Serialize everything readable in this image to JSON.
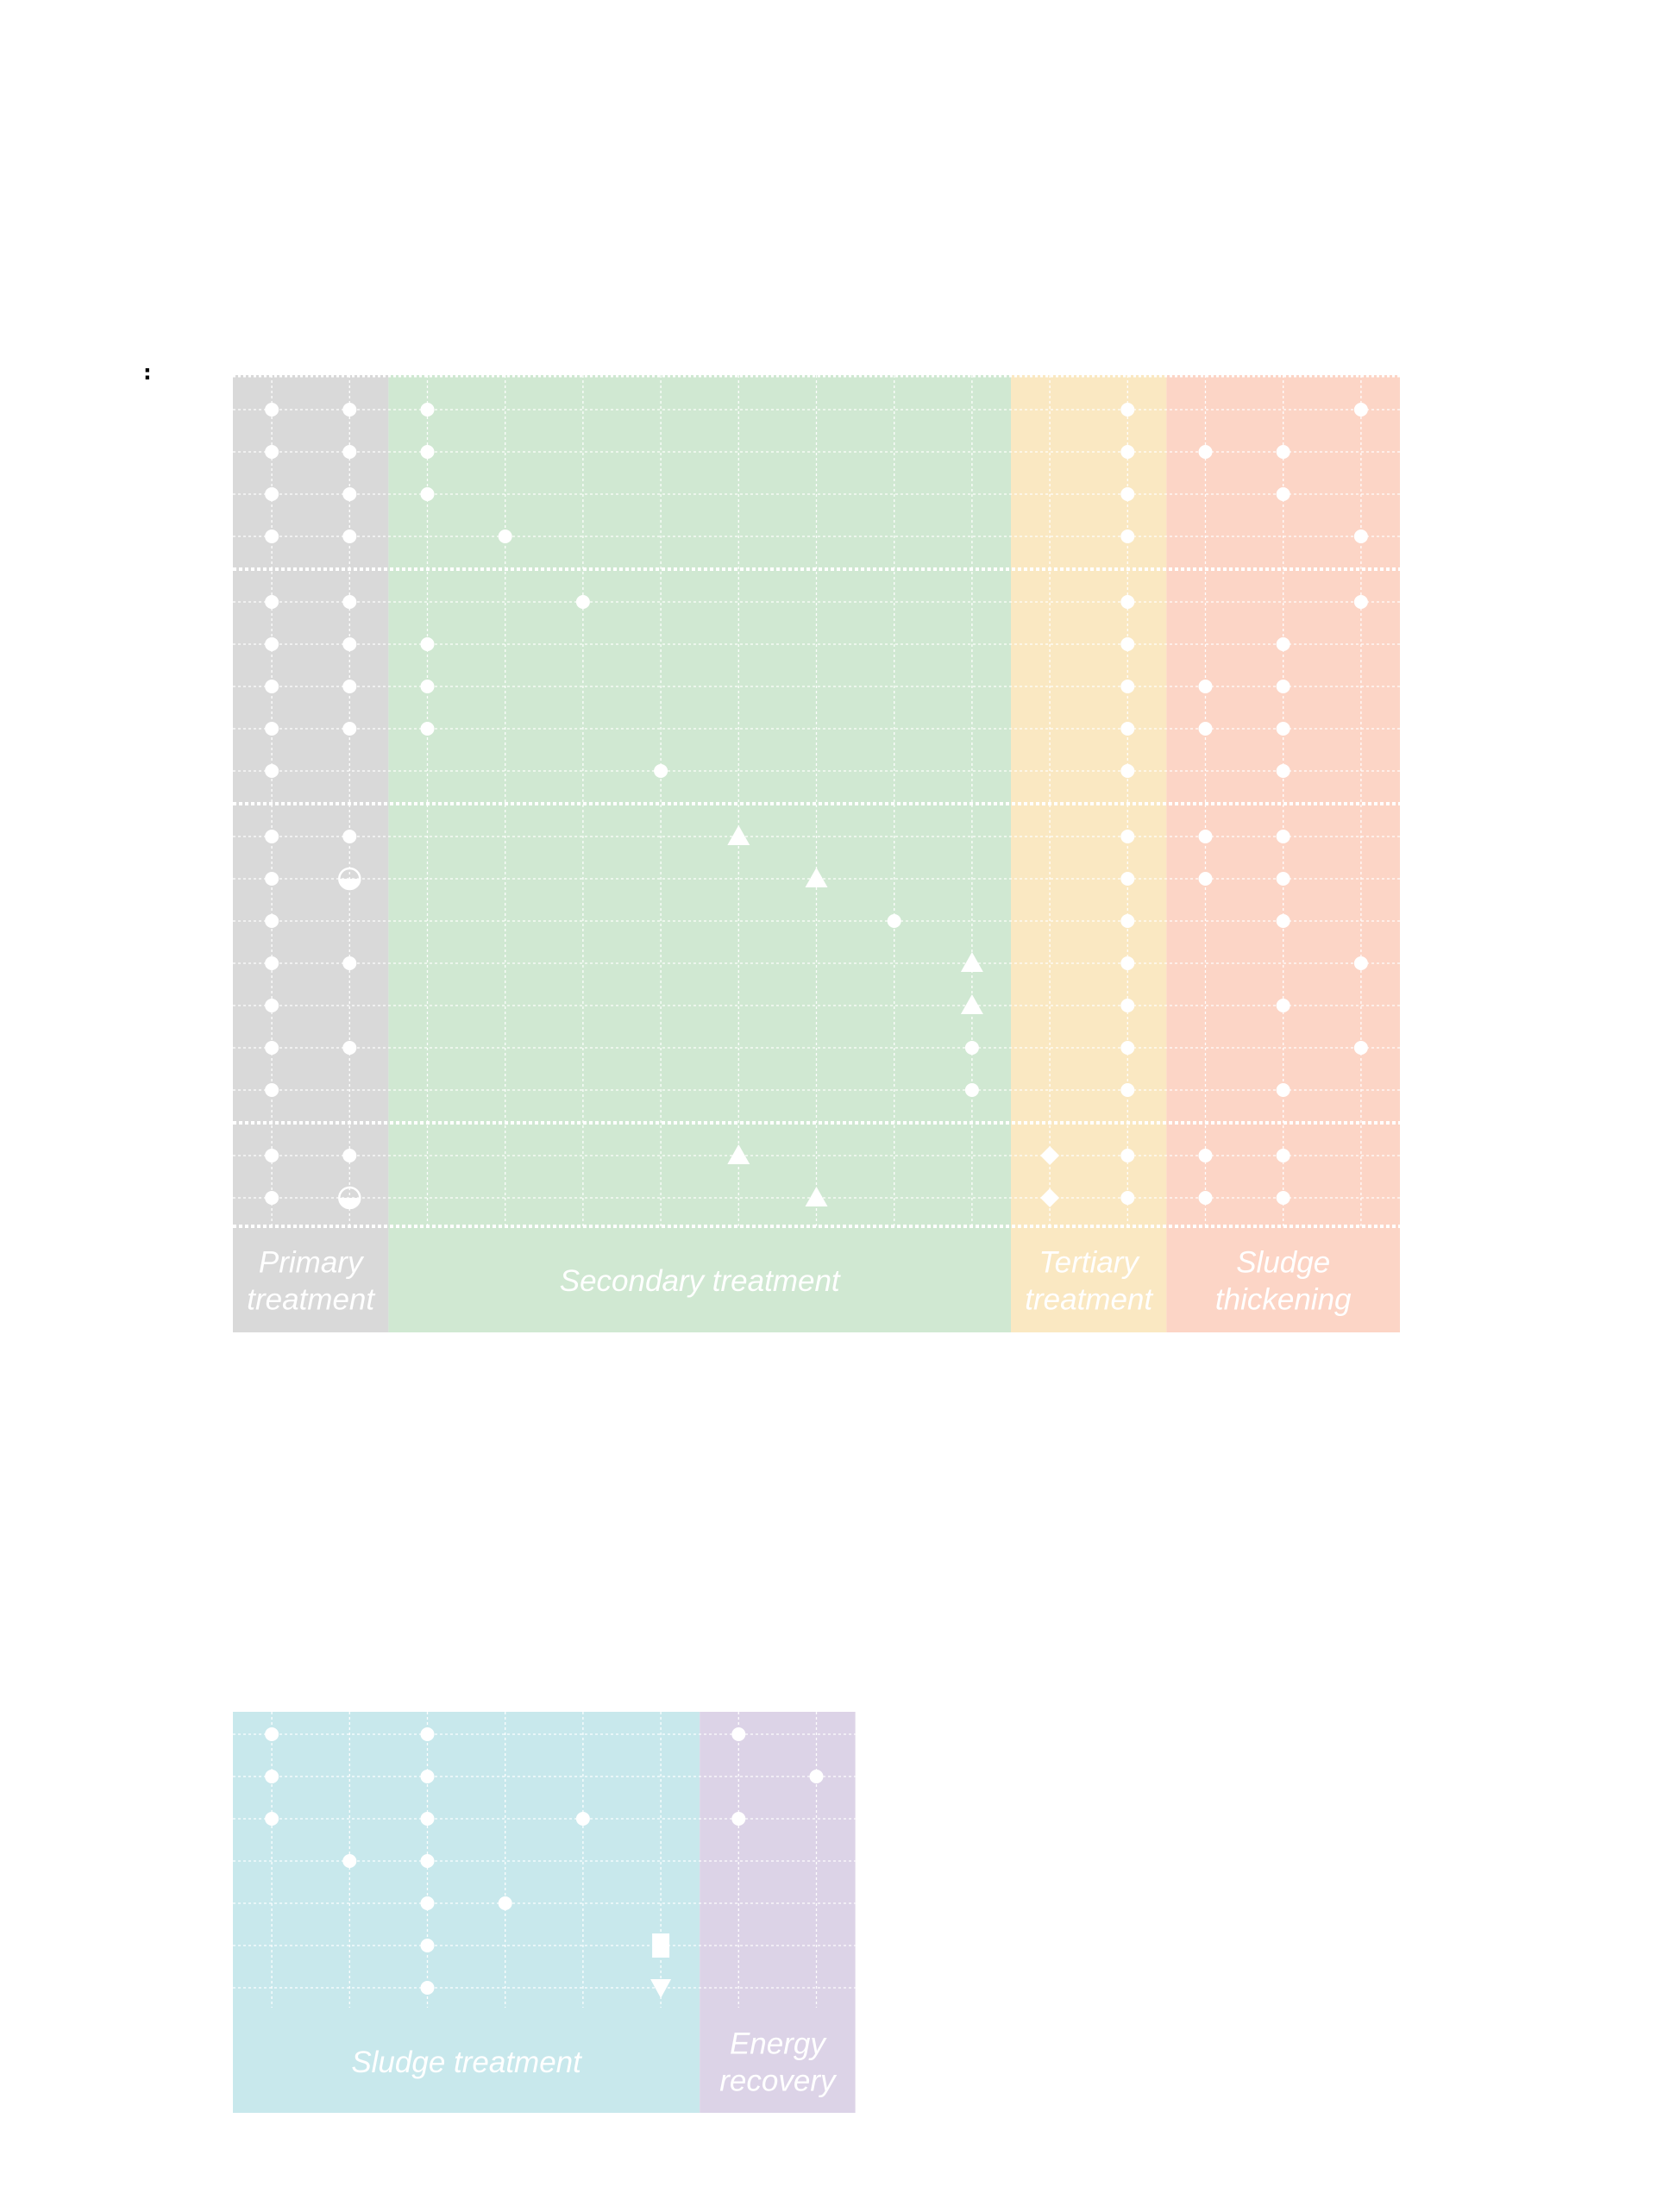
{
  "page": {
    "stray_text": ":"
  },
  "colors": {
    "primary": "#d9d9d9",
    "secondary": "#d0e8d2",
    "tertiary": "#fae8c2",
    "thickening": "#fcd5c6",
    "sludge": "#c8e8ec",
    "energy": "#dcd3e7",
    "grid": "#ffffff"
  },
  "panels": [
    {
      "id": "top",
      "columns": 15,
      "row_groups": [
        4,
        5,
        7,
        2
      ],
      "bands": [
        {
          "label_lines": [
            "Primary",
            "treatment"
          ],
          "color": "primary",
          "col_start": 0,
          "col_end": 2
        },
        {
          "label_lines": [
            "Secondary treatment"
          ],
          "color": "secondary",
          "col_start": 2,
          "col_end": 10
        },
        {
          "label_lines": [
            "Tertiary",
            "treatment"
          ],
          "color": "tertiary",
          "col_start": 10,
          "col_end": 12
        },
        {
          "label_lines": [
            "Sludge",
            "thickening"
          ],
          "color": "thickening",
          "col_start": 12,
          "col_end": 15
        }
      ],
      "markers": [
        {
          "row": 0,
          "col": 0,
          "shape": "circle"
        },
        {
          "row": 0,
          "col": 1,
          "shape": "circle"
        },
        {
          "row": 0,
          "col": 2,
          "shape": "circle"
        },
        {
          "row": 0,
          "col": 11,
          "shape": "circle"
        },
        {
          "row": 0,
          "col": 14,
          "shape": "circle"
        },
        {
          "row": 1,
          "col": 0,
          "shape": "circle"
        },
        {
          "row": 1,
          "col": 1,
          "shape": "circle"
        },
        {
          "row": 1,
          "col": 2,
          "shape": "circle"
        },
        {
          "row": 1,
          "col": 11,
          "shape": "circle"
        },
        {
          "row": 1,
          "col": 12,
          "shape": "circle"
        },
        {
          "row": 1,
          "col": 13,
          "shape": "circle"
        },
        {
          "row": 2,
          "col": 0,
          "shape": "circle"
        },
        {
          "row": 2,
          "col": 1,
          "shape": "circle"
        },
        {
          "row": 2,
          "col": 2,
          "shape": "circle"
        },
        {
          "row": 2,
          "col": 11,
          "shape": "circle"
        },
        {
          "row": 2,
          "col": 13,
          "shape": "circle"
        },
        {
          "row": 3,
          "col": 0,
          "shape": "circle"
        },
        {
          "row": 3,
          "col": 1,
          "shape": "circle"
        },
        {
          "row": 3,
          "col": 3,
          "shape": "circle"
        },
        {
          "row": 3,
          "col": 11,
          "shape": "circle"
        },
        {
          "row": 3,
          "col": 14,
          "shape": "circle"
        },
        {
          "row": 4,
          "col": 0,
          "shape": "circle"
        },
        {
          "row": 4,
          "col": 1,
          "shape": "circle"
        },
        {
          "row": 4,
          "col": 4,
          "shape": "circle"
        },
        {
          "row": 4,
          "col": 11,
          "shape": "circle"
        },
        {
          "row": 4,
          "col": 14,
          "shape": "circle"
        },
        {
          "row": 5,
          "col": 0,
          "shape": "circle"
        },
        {
          "row": 5,
          "col": 1,
          "shape": "circle"
        },
        {
          "row": 5,
          "col": 2,
          "shape": "circle"
        },
        {
          "row": 5,
          "col": 11,
          "shape": "circle"
        },
        {
          "row": 5,
          "col": 13,
          "shape": "circle"
        },
        {
          "row": 6,
          "col": 0,
          "shape": "circle"
        },
        {
          "row": 6,
          "col": 1,
          "shape": "circle"
        },
        {
          "row": 6,
          "col": 2,
          "shape": "circle"
        },
        {
          "row": 6,
          "col": 11,
          "shape": "circle"
        },
        {
          "row": 6,
          "col": 12,
          "shape": "circle"
        },
        {
          "row": 6,
          "col": 13,
          "shape": "circle"
        },
        {
          "row": 7,
          "col": 0,
          "shape": "circle"
        },
        {
          "row": 7,
          "col": 1,
          "shape": "circle"
        },
        {
          "row": 7,
          "col": 2,
          "shape": "circle"
        },
        {
          "row": 7,
          "col": 11,
          "shape": "circle"
        },
        {
          "row": 7,
          "col": 12,
          "shape": "circle"
        },
        {
          "row": 7,
          "col": 13,
          "shape": "circle"
        },
        {
          "row": 8,
          "col": 0,
          "shape": "circle"
        },
        {
          "row": 8,
          "col": 5,
          "shape": "circle"
        },
        {
          "row": 8,
          "col": 11,
          "shape": "circle"
        },
        {
          "row": 8,
          "col": 13,
          "shape": "circle"
        },
        {
          "row": 9,
          "col": 0,
          "shape": "circle"
        },
        {
          "row": 9,
          "col": 1,
          "shape": "circle"
        },
        {
          "row": 9,
          "col": 6,
          "shape": "triangle-up"
        },
        {
          "row": 9,
          "col": 11,
          "shape": "circle"
        },
        {
          "row": 9,
          "col": 12,
          "shape": "circle"
        },
        {
          "row": 9,
          "col": 13,
          "shape": "circle"
        },
        {
          "row": 10,
          "col": 0,
          "shape": "circle"
        },
        {
          "row": 10,
          "col": 1,
          "shape": "half-circle"
        },
        {
          "row": 10,
          "col": 7,
          "shape": "triangle-up"
        },
        {
          "row": 10,
          "col": 11,
          "shape": "circle"
        },
        {
          "row": 10,
          "col": 12,
          "shape": "circle"
        },
        {
          "row": 10,
          "col": 13,
          "shape": "circle"
        },
        {
          "row": 11,
          "col": 0,
          "shape": "circle"
        },
        {
          "row": 11,
          "col": 8,
          "shape": "circle"
        },
        {
          "row": 11,
          "col": 11,
          "shape": "circle"
        },
        {
          "row": 11,
          "col": 13,
          "shape": "circle"
        },
        {
          "row": 12,
          "col": 0,
          "shape": "circle"
        },
        {
          "row": 12,
          "col": 1,
          "shape": "circle"
        },
        {
          "row": 12,
          "col": 9,
          "shape": "triangle-up"
        },
        {
          "row": 12,
          "col": 11,
          "shape": "circle"
        },
        {
          "row": 12,
          "col": 14,
          "shape": "circle"
        },
        {
          "row": 13,
          "col": 0,
          "shape": "circle"
        },
        {
          "row": 13,
          "col": 9,
          "shape": "triangle-up"
        },
        {
          "row": 13,
          "col": 11,
          "shape": "circle"
        },
        {
          "row": 13,
          "col": 13,
          "shape": "circle"
        },
        {
          "row": 14,
          "col": 0,
          "shape": "circle"
        },
        {
          "row": 14,
          "col": 1,
          "shape": "circle"
        },
        {
          "row": 14,
          "col": 9,
          "shape": "circle"
        },
        {
          "row": 14,
          "col": 11,
          "shape": "circle"
        },
        {
          "row": 14,
          "col": 14,
          "shape": "circle"
        },
        {
          "row": 15,
          "col": 0,
          "shape": "circle"
        },
        {
          "row": 15,
          "col": 9,
          "shape": "circle"
        },
        {
          "row": 15,
          "col": 11,
          "shape": "circle"
        },
        {
          "row": 15,
          "col": 13,
          "shape": "circle"
        },
        {
          "row": 16,
          "col": 0,
          "shape": "circle"
        },
        {
          "row": 16,
          "col": 1,
          "shape": "circle"
        },
        {
          "row": 16,
          "col": 6,
          "shape": "triangle-up"
        },
        {
          "row": 16,
          "col": 10,
          "shape": "diamond"
        },
        {
          "row": 16,
          "col": 11,
          "shape": "circle"
        },
        {
          "row": 16,
          "col": 12,
          "shape": "circle"
        },
        {
          "row": 16,
          "col": 13,
          "shape": "circle"
        },
        {
          "row": 17,
          "col": 0,
          "shape": "circle"
        },
        {
          "row": 17,
          "col": 1,
          "shape": "half-circle"
        },
        {
          "row": 17,
          "col": 7,
          "shape": "triangle-up"
        },
        {
          "row": 17,
          "col": 10,
          "shape": "diamond"
        },
        {
          "row": 17,
          "col": 11,
          "shape": "circle"
        },
        {
          "row": 17,
          "col": 12,
          "shape": "circle"
        },
        {
          "row": 17,
          "col": 13,
          "shape": "circle"
        }
      ]
    },
    {
      "id": "bottom",
      "columns": 8,
      "row_groups": [
        7
      ],
      "bands": [
        {
          "label_lines": [
            "Sludge treatment"
          ],
          "color": "sludge",
          "col_start": 0,
          "col_end": 6
        },
        {
          "label_lines": [
            "Energy",
            "recovery"
          ],
          "color": "energy",
          "col_start": 6,
          "col_end": 8
        }
      ],
      "markers": [
        {
          "row": 0,
          "col": 0,
          "shape": "circle"
        },
        {
          "row": 0,
          "col": 2,
          "shape": "circle"
        },
        {
          "row": 0,
          "col": 6,
          "shape": "circle"
        },
        {
          "row": 1,
          "col": 0,
          "shape": "circle"
        },
        {
          "row": 1,
          "col": 2,
          "shape": "circle"
        },
        {
          "row": 1,
          "col": 7,
          "shape": "circle"
        },
        {
          "row": 2,
          "col": 0,
          "shape": "circle"
        },
        {
          "row": 2,
          "col": 2,
          "shape": "circle"
        },
        {
          "row": 2,
          "col": 4,
          "shape": "circle"
        },
        {
          "row": 2,
          "col": 6,
          "shape": "circle"
        },
        {
          "row": 3,
          "col": 1,
          "shape": "circle"
        },
        {
          "row": 3,
          "col": 2,
          "shape": "circle"
        },
        {
          "row": 4,
          "col": 2,
          "shape": "circle"
        },
        {
          "row": 4,
          "col": 3,
          "shape": "circle"
        },
        {
          "row": 5,
          "col": 2,
          "shape": "circle"
        },
        {
          "row": 5,
          "col": 5,
          "shape": "square"
        },
        {
          "row": 6,
          "col": 2,
          "shape": "circle"
        },
        {
          "row": 6,
          "col": 5,
          "shape": "triangle-down"
        }
      ]
    }
  ]
}
